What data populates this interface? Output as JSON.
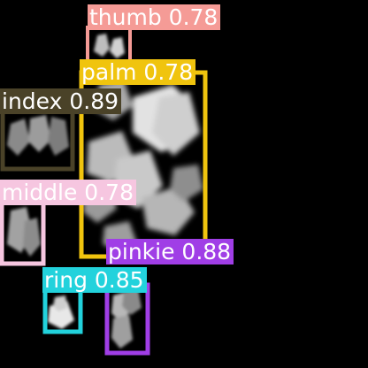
{
  "image": {
    "background_color": "#000000",
    "content": "grayscale blurred hand-shaped blobs on black background with colored detection boxes"
  },
  "detections": [
    {
      "id": "thumb",
      "label": "thumb 0.78",
      "box_color": "#f59b96",
      "label_bg": "#f59b96",
      "text_color": "#ffffff"
    },
    {
      "id": "palm",
      "label": "palm 0.78",
      "box_color": "#f0c40e",
      "label_bg": "#f0c40e",
      "text_color": "#ffffff"
    },
    {
      "id": "index",
      "label": "index 0.89",
      "box_color": "#4a4228",
      "label_bg": "#4a4228",
      "text_color": "#ffffff"
    },
    {
      "id": "middle",
      "label": "middle 0.78",
      "box_color": "#f6c6e0",
      "label_bg": "#f6c6e0",
      "text_color": "#ffffff"
    },
    {
      "id": "pinkie",
      "label": "pinkie 0.88",
      "box_color": "#a03ee6",
      "label_bg": "#a03ee6",
      "text_color": "#ffffff"
    },
    {
      "id": "ring",
      "label": "ring 0.85",
      "box_color": "#22d2dc",
      "label_bg": "#22d2dc",
      "text_color": "#ffffff"
    }
  ]
}
